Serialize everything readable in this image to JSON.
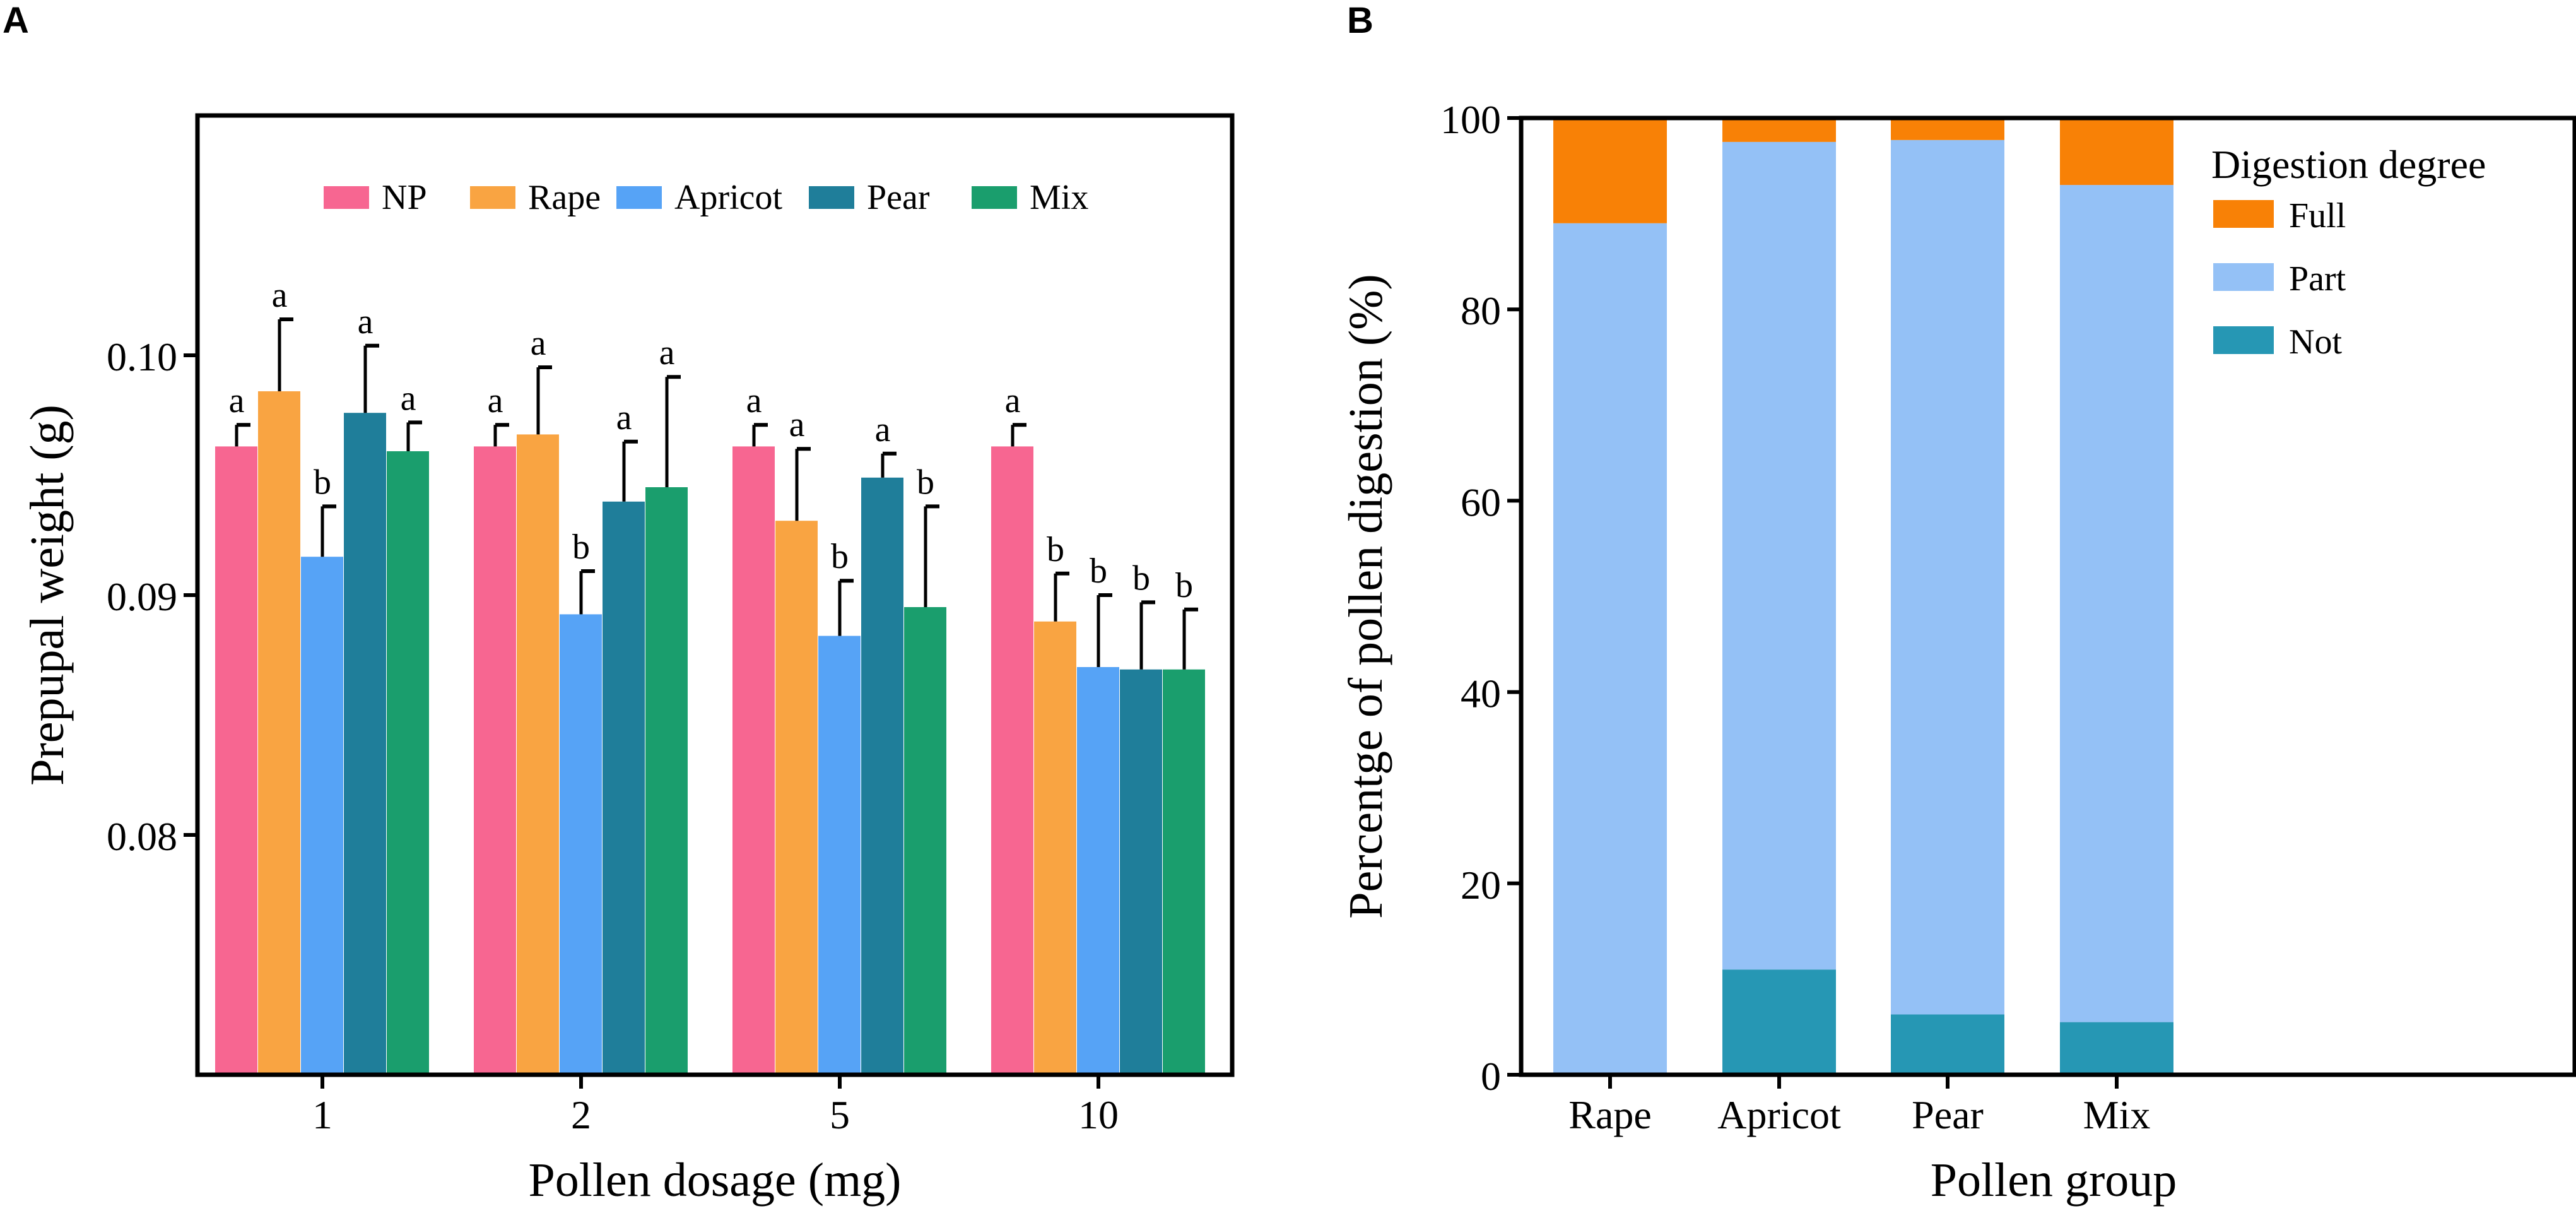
{
  "panel_a_label": "A",
  "panel_b_label": "B",
  "chart_data": [
    {
      "type": "bar",
      "panel": "A",
      "xlabel": "Pollen dosage (mg)",
      "ylabel": "Prepupal weight (g)",
      "categories": [
        "1",
        "2",
        "5",
        "10"
      ],
      "ylim": [
        0.07,
        0.11
      ],
      "yticks": [
        "0.08",
        "0.09",
        "0.10"
      ],
      "legend_position": "top",
      "series": [
        {
          "name": "NP",
          "color": "#F76691",
          "values": [
            0.0962,
            0.0962,
            0.0962,
            0.0962
          ],
          "errors": [
            0.0009,
            0.0009,
            0.0009,
            0.0009
          ],
          "letters": [
            "a",
            "a",
            "a",
            "a"
          ]
        },
        {
          "name": "Rape",
          "color": "#F9A442",
          "values": [
            0.0985,
            0.0967,
            0.0931,
            0.0889
          ],
          "errors": [
            0.003,
            0.0028,
            0.003,
            0.002
          ],
          "letters": [
            "a",
            "a",
            "a",
            "b"
          ]
        },
        {
          "name": "Apricot",
          "color": "#56A3F6",
          "values": [
            0.0916,
            0.0892,
            0.0883,
            0.087
          ],
          "errors": [
            0.0021,
            0.0018,
            0.0023,
            0.003
          ],
          "letters": [
            "b",
            "b",
            "b",
            "b"
          ]
        },
        {
          "name": "Pear",
          "color": "#1F7E9A",
          "values": [
            0.0976,
            0.0939,
            0.0949,
            0.0869
          ],
          "errors": [
            0.0028,
            0.0025,
            0.001,
            0.0028
          ],
          "letters": [
            "a",
            "a",
            "a",
            "b"
          ]
        },
        {
          "name": "Mix",
          "color": "#1A9E6D",
          "values": [
            0.096,
            0.0945,
            0.0895,
            0.0869
          ],
          "errors": [
            0.0012,
            0.0046,
            0.0042,
            0.0025
          ],
          "letters": [
            "a",
            "a",
            "b",
            "b"
          ]
        }
      ]
    },
    {
      "type": "bar",
      "stacked": true,
      "panel": "B",
      "xlabel": "Pollen group",
      "ylabel": "Percentge of pollen digestion (%)",
      "categories": [
        "Rape",
        "Apricot",
        "Pear",
        "Mix"
      ],
      "ylim": [
        0,
        100
      ],
      "yticks": [
        "0",
        "20",
        "40",
        "60",
        "80",
        "100"
      ],
      "legend_title": "Digestion degree",
      "legend_position": "top-right",
      "series": [
        {
          "name": "Not",
          "color": "#2697B4",
          "values": [
            0,
            11,
            6.3,
            5.5
          ]
        },
        {
          "name": "Part",
          "color": "#94C1F6",
          "values": [
            89,
            86.5,
            91.4,
            87.5
          ]
        },
        {
          "name": "Full",
          "color": "#F88106",
          "values": [
            11,
            2.5,
            2.3,
            7
          ]
        }
      ],
      "legend_order": [
        "Full",
        "Part",
        "Not"
      ]
    }
  ]
}
